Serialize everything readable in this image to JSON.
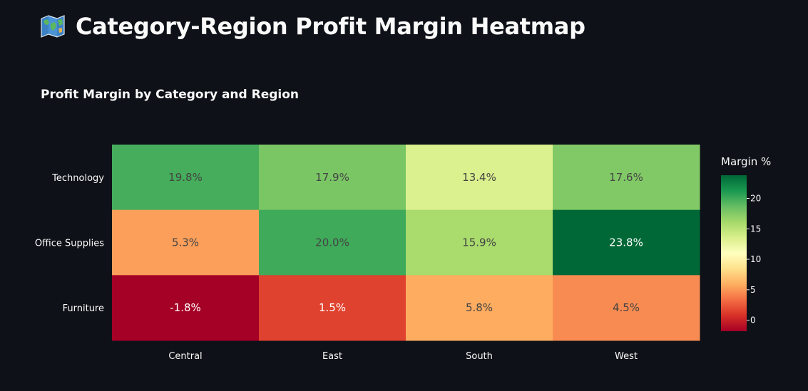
{
  "page": {
    "title": "Category-Region Profit Margin Heatmap",
    "title_icon": "world-map-icon"
  },
  "chart_data": {
    "type": "heatmap",
    "title": "Profit Margin by Category and Region",
    "x_categories": [
      "Central",
      "East",
      "South",
      "West"
    ],
    "y_categories": [
      "Technology",
      "Office Supplies",
      "Furniture"
    ],
    "values": [
      [
        19.8,
        17.9,
        13.4,
        17.6
      ],
      [
        5.3,
        20.0,
        15.9,
        23.8
      ],
      [
        -1.8,
        1.5,
        5.8,
        4.5
      ]
    ],
    "cell_labels": [
      [
        "19.8%",
        "17.9%",
        "13.4%",
        "17.6%"
      ],
      [
        "5.3%",
        "20.0%",
        "15.9%",
        "23.8%"
      ],
      [
        "-1.8%",
        "1.5%",
        "5.8%",
        "4.5%"
      ]
    ],
    "colorscale": "RdYlGn",
    "colorbar": {
      "title": "Margin %",
      "range": [
        -1.8,
        23.8
      ],
      "ticks": [
        0,
        5,
        10,
        15,
        20
      ]
    },
    "colors": {
      "background": "#0e1117",
      "text": "#fafafa",
      "cell_text_dark": "#444444",
      "cell_text_light": "#ffffff"
    }
  }
}
